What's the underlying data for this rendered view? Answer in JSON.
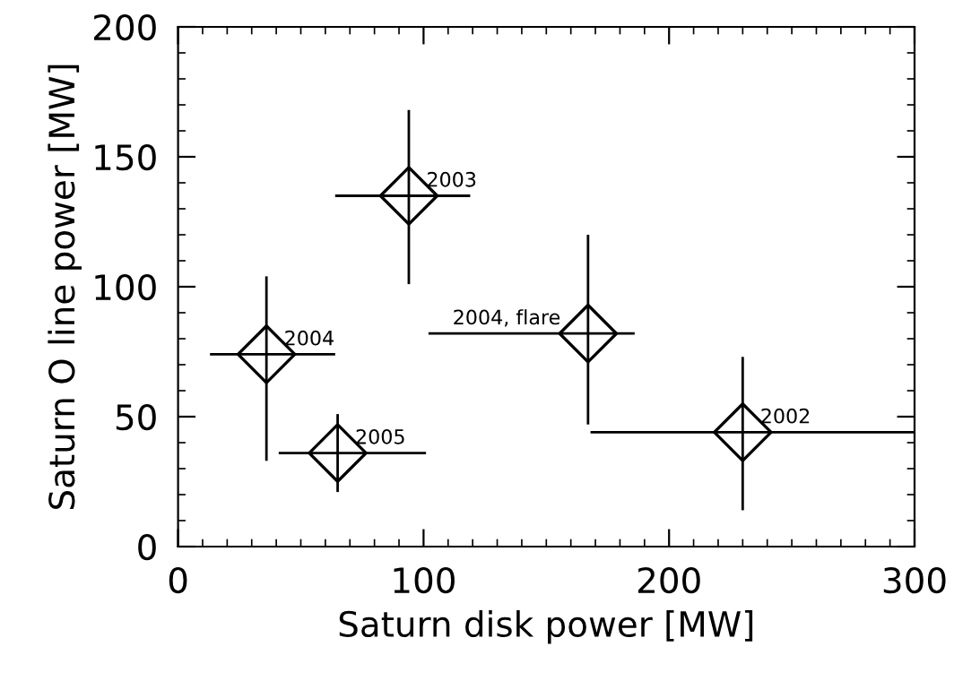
{
  "chart_data": {
    "type": "scatter",
    "xlabel": "Saturn disk power [MW]",
    "ylabel": "Saturn O line power [MW]",
    "x": [
      94,
      36,
      65,
      167,
      230
    ],
    "values": [
      135,
      74,
      36,
      82,
      44
    ],
    "xerrors": [
      [
        64,
        119
      ],
      [
        13,
        64
      ],
      [
        41,
        101
      ],
      [
        102,
        186
      ],
      [
        168,
        300
      ]
    ],
    "errors": [
      [
        101,
        168
      ],
      [
        33,
        104
      ],
      [
        21,
        51
      ],
      [
        47,
        120
      ],
      [
        14,
        73
      ]
    ],
    "color": "#000000",
    "marker": "diamond",
    "grid": false,
    "legend": false,
    "xlim": [
      0,
      300
    ],
    "xticks": [
      0,
      100,
      200,
      300
    ],
    "ylim": [
      0,
      200
    ],
    "yticks": [
      0,
      50,
      100,
      150,
      200
    ],
    "annotations": [
      {
        "text": "2003",
        "x": 94,
        "y": 135
      },
      {
        "text": "2004",
        "x": 36,
        "y": 74
      },
      {
        "text": "2005",
        "x": 65,
        "y": 36
      },
      {
        "text": "2004, flare",
        "x": 167,
        "y": 82
      },
      {
        "text": "2002",
        "x": 230,
        "y": 44
      }
    ]
  }
}
